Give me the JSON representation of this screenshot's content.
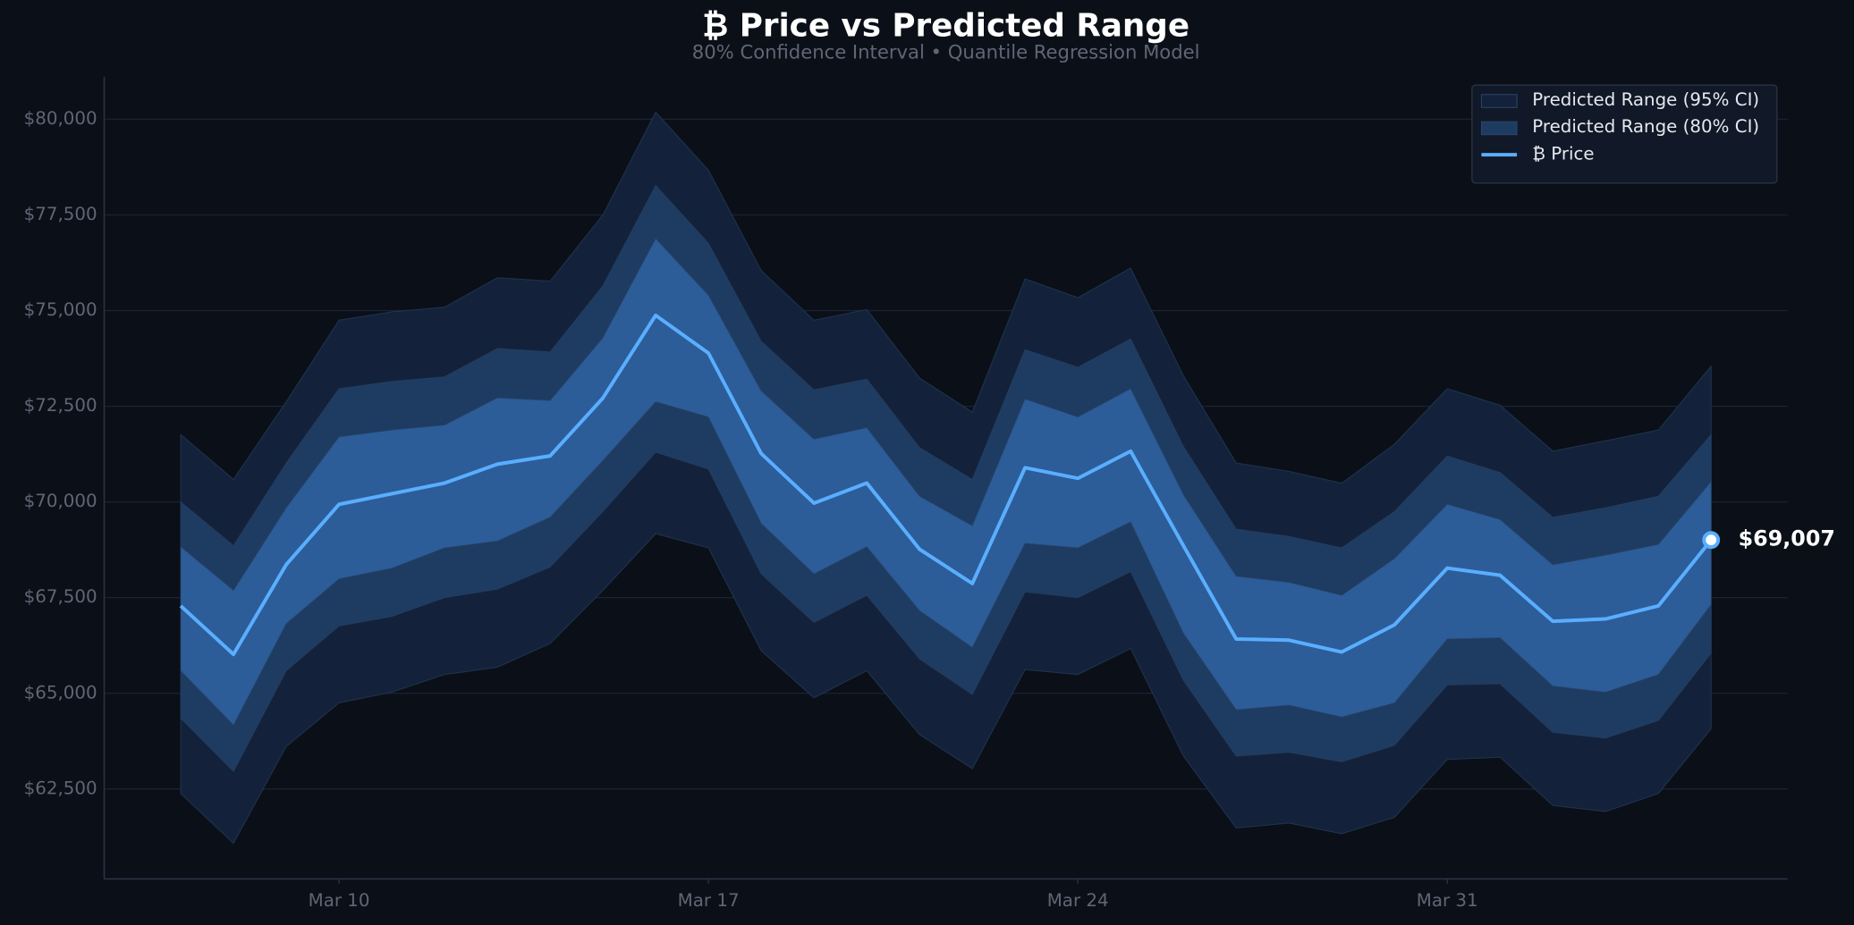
{
  "chart_data": {
    "type": "line",
    "title": "₿ Price vs Predicted Range",
    "subtitle": "80% Confidence Interval  •  Quantile Regression Model",
    "categories": [
      null,
      null,
      null,
      "Mar 10",
      null,
      null,
      null,
      null,
      null,
      null,
      "Mar 17",
      null,
      null,
      null,
      null,
      null,
      null,
      "Mar 24",
      null,
      null,
      null,
      null,
      null,
      null,
      "Mar 31",
      null,
      null,
      null,
      null,
      null
    ],
    "ylim": [
      60150,
      81110
    ],
    "yticks": [
      {
        "value": 62500,
        "label": "$62,500"
      },
      {
        "value": 65000,
        "label": "$65,000"
      },
      {
        "value": 67500,
        "label": "$67,500"
      },
      {
        "value": 70000,
        "label": "$70,000"
      },
      {
        "value": 72500,
        "label": "$72,500"
      },
      {
        "value": 75000,
        "label": "$75,000"
      },
      {
        "value": 77500,
        "label": "$77,500"
      },
      {
        "value": 80000,
        "label": "$80,000"
      }
    ],
    "grid": true,
    "legend": "upper right",
    "bands": [
      {
        "name": "Predicted Range (95% CI)",
        "color": "#13223a",
        "upper": [
          71760,
          70590,
          72620,
          74750,
          74970,
          75090,
          75860,
          75770,
          77500,
          80190,
          78670,
          76050,
          74750,
          75030,
          73240,
          72350,
          75830,
          75340,
          76110,
          73300,
          71020,
          70800,
          70490,
          71510,
          72960,
          72530,
          71330,
          71600,
          71880,
          73550
        ],
        "lower": [
          62380,
          61080,
          63610,
          64750,
          65030,
          65490,
          65680,
          66300,
          67690,
          69170,
          68800,
          66110,
          64880,
          65590,
          63920,
          63030,
          65620,
          65490,
          66170,
          63360,
          61480,
          61610,
          61330,
          61760,
          63270,
          63330,
          62070,
          61910,
          62380,
          64070
        ]
      },
      {
        "name": "Predicted Range (80% CI)",
        "color": "#1e3b62",
        "upper": [
          70000,
          68860,
          71020,
          72960,
          73150,
          73270,
          74010,
          73920,
          75650,
          78270,
          76760,
          74200,
          72930,
          73210,
          71420,
          70590,
          73980,
          73520,
          74260,
          71450,
          69290,
          69100,
          68800,
          69750,
          71200,
          70770,
          69600,
          69850,
          70150,
          71760
        ],
        "lower": [
          64350,
          62960,
          65590,
          66760,
          67010,
          67500,
          67720,
          68300,
          69750,
          71300,
          70860,
          68120,
          66850,
          67560,
          65900,
          64970,
          67650,
          67500,
          68180,
          65340,
          63360,
          63460,
          63210,
          63640,
          65220,
          65250,
          63980,
          63830,
          64290,
          66050
        ]
      },
      {
        "color": "#2c5d99",
        "upper": [
          68830,
          67690,
          69850,
          71700,
          71880,
          72010,
          72720,
          72650,
          74290,
          76880,
          75400,
          72900,
          71640,
          71940,
          70150,
          69380,
          72690,
          72220,
          72960,
          70190,
          68060,
          67900,
          67560,
          68520,
          69940,
          69540,
          68360,
          68610,
          68890,
          70530
        ],
        "lower": [
          65590,
          64170,
          66820,
          67990,
          68270,
          68800,
          68980,
          69600,
          71080,
          72620,
          72220,
          69440,
          68120,
          68830,
          67160,
          66200,
          68920,
          68800,
          69480,
          66570,
          64570,
          64690,
          64380,
          64750,
          66420,
          66450,
          65190,
          65030,
          65490,
          67320
        ]
      }
    ],
    "series": [
      {
        "name": "₿ Price",
        "color": "#5aaeff",
        "values": [
          67284,
          66019,
          68364,
          69938,
          70216,
          70494,
          70988,
          71204,
          72716,
          74877,
          73889,
          71265,
          69969,
          70494,
          68765,
          67870,
          70895,
          70617,
          71327,
          68858,
          66420,
          66389,
          66080,
          66790,
          68272,
          68086,
          66883,
          66944,
          67284,
          69007
        ],
        "value_labels": [
          null,
          null,
          null,
          null,
          null,
          null,
          null,
          null,
          null,
          null,
          null,
          null,
          null,
          null,
          null,
          null,
          null,
          null,
          null,
          null,
          null,
          null,
          null,
          null,
          null,
          null,
          null,
          null,
          null,
          "$69,007"
        ]
      }
    ]
  }
}
